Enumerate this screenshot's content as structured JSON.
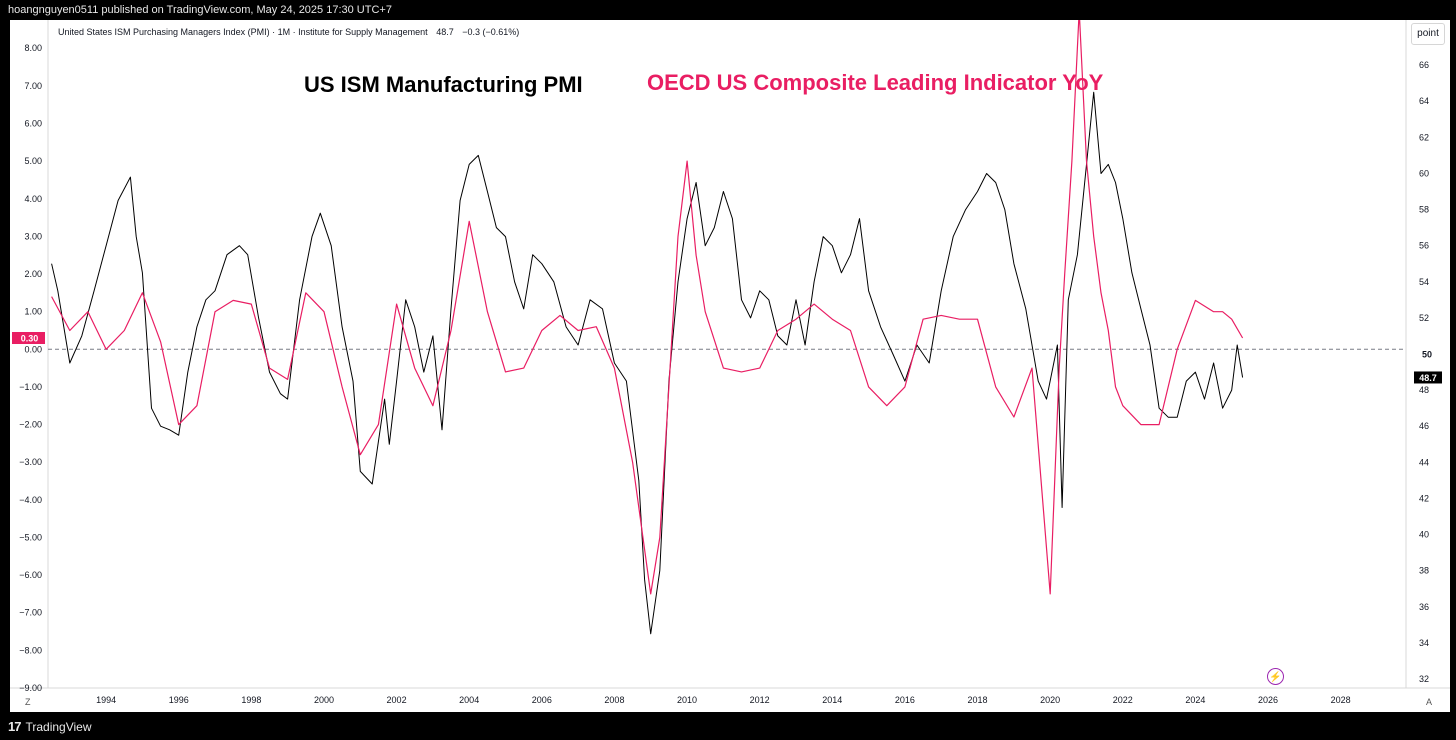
{
  "header": {
    "published_line": "hoangnguyen0511 published on TradingView.com, May 24, 2025 17:30 UTC+7"
  },
  "legend": {
    "series_name": "United States ISM Purchasing Managers Index (PMI) · 1M · Institute for Supply Management",
    "last_value": "48.7",
    "change": "−0.3 (−0.61%)"
  },
  "annotations": {
    "pmi_title": "US ISM Manufacturing PMI",
    "oecd_title": "OECD US Composite Leading Indicator YoY"
  },
  "right_axis": {
    "unit_label": "point"
  },
  "corner": {
    "left": "Z",
    "right": "A"
  },
  "footer": {
    "brand": "TradingView",
    "logo_mark": "17"
  },
  "colors": {
    "pmi": "#000000",
    "oecd": "#e91e63",
    "flash": "#9c27b0"
  },
  "chart_data": {
    "type": "line",
    "x_ticks": [
      "1994",
      "1996",
      "1998",
      "2000",
      "2002",
      "2004",
      "2006",
      "2008",
      "2010",
      "2012",
      "2014",
      "2016",
      "2018",
      "2020",
      "2022",
      "2024",
      "2026",
      "2028"
    ],
    "xlim": [
      1992.4,
      2029.8
    ],
    "left_axis": {
      "ylim": [
        -9.0,
        8.75
      ],
      "ticks": [
        "8.00",
        "7.00",
        "6.00",
        "5.00",
        "4.00",
        "3.00",
        "2.00",
        "1.00",
        "0.00",
        "−1.00",
        "−2.00",
        "−3.00",
        "−4.00",
        "−5.00",
        "−6.00",
        "−7.00",
        "−8.00",
        "−9.00"
      ],
      "tick_values": [
        8,
        7,
        6,
        5,
        4,
        3,
        2,
        1,
        0,
        -1,
        -2,
        -3,
        -4,
        -5,
        -6,
        -7,
        -8,
        -9
      ],
      "current_label": "0.30"
    },
    "right_axis": {
      "ylim": [
        31.5,
        68.5
      ],
      "ticks": [
        "66",
        "64",
        "62",
        "60",
        "58",
        "56",
        "54",
        "52",
        "50",
        "48",
        "46",
        "44",
        "42",
        "40",
        "38",
        "36",
        "34",
        "32"
      ],
      "tick_values": [
        66,
        64,
        62,
        60,
        58,
        56,
        54,
        52,
        50,
        48,
        46,
        44,
        42,
        40,
        38,
        36,
        34,
        32
      ],
      "reference_label": "50",
      "last_label": "48.7"
    },
    "series": [
      {
        "name": "US ISM Manufacturing PMI",
        "axis": "right",
        "x": [
          1992.5,
          1992.67,
          1993.0,
          1993.33,
          1993.67,
          1994.0,
          1994.33,
          1994.67,
          1994.83,
          1995.0,
          1995.25,
          1995.5,
          1995.75,
          1996.0,
          1996.25,
          1996.5,
          1996.75,
          1997.0,
          1997.33,
          1997.67,
          1997.9,
          1998.2,
          1998.5,
          1998.8,
          1999.0,
          1999.33,
          1999.67,
          1999.9,
          2000.2,
          2000.5,
          2000.8,
          2001.0,
          2001.33,
          2001.67,
          2001.8,
          2002.0,
          2002.25,
          2002.5,
          2002.75,
          2003.0,
          2003.25,
          2003.5,
          2003.75,
          2004.0,
          2004.25,
          2004.5,
          2004.75,
          2005.0,
          2005.25,
          2005.5,
          2005.75,
          2006.0,
          2006.33,
          2006.67,
          2007.0,
          2007.33,
          2007.67,
          2008.0,
          2008.33,
          2008.67,
          2008.83,
          2009.0,
          2009.25,
          2009.5,
          2009.75,
          2010.0,
          2010.25,
          2010.5,
          2010.75,
          2011.0,
          2011.25,
          2011.5,
          2011.75,
          2012.0,
          2012.25,
          2012.5,
          2012.75,
          2013.0,
          2013.25,
          2013.5,
          2013.75,
          2014.0,
          2014.25,
          2014.5,
          2014.75,
          2015.0,
          2015.33,
          2015.67,
          2016.0,
          2016.33,
          2016.67,
          2017.0,
          2017.33,
          2017.67,
          2018.0,
          2018.25,
          2018.5,
          2018.75,
          2019.0,
          2019.33,
          2019.67,
          2019.9,
          2020.2,
          2020.33,
          2020.5,
          2020.75,
          2021.0,
          2021.2,
          2021.4,
          2021.6,
          2021.8,
          2022.0,
          2022.25,
          2022.5,
          2022.75,
          2023.0,
          2023.25,
          2023.5,
          2023.75,
          2024.0,
          2024.25,
          2024.5,
          2024.75,
          2025.0,
          2025.15,
          2025.3
        ],
        "values": [
          55.0,
          53.5,
          49.5,
          51.0,
          53.5,
          56.0,
          58.5,
          59.8,
          56.5,
          54.5,
          47.0,
          46.0,
          45.8,
          45.5,
          49.0,
          51.5,
          53.0,
          53.5,
          55.5,
          56.0,
          55.5,
          52.0,
          49.0,
          47.8,
          47.5,
          53.0,
          56.5,
          57.8,
          56.0,
          51.5,
          48.5,
          43.5,
          42.8,
          47.5,
          45.0,
          48.5,
          53.0,
          51.5,
          49.0,
          51.0,
          45.8,
          52.5,
          58.5,
          60.5,
          61.0,
          59.0,
          57.0,
          56.5,
          54.0,
          52.5,
          55.5,
          55.0,
          54.0,
          51.5,
          50.5,
          53.0,
          52.5,
          49.5,
          48.5,
          43.0,
          37.5,
          34.5,
          38.0,
          48.5,
          54.0,
          57.5,
          59.5,
          56.0,
          57.0,
          59.0,
          57.5,
          53.0,
          52.0,
          53.5,
          53.0,
          51.0,
          50.5,
          53.0,
          50.5,
          54.0,
          56.5,
          56.0,
          54.5,
          55.5,
          57.5,
          53.5,
          51.5,
          50.0,
          48.5,
          50.5,
          49.5,
          53.5,
          56.5,
          58.0,
          59.0,
          60.0,
          59.5,
          58.0,
          55.0,
          52.5,
          48.5,
          47.5,
          50.5,
          41.5,
          53.0,
          55.5,
          60.5,
          64.5,
          60.0,
          60.5,
          59.5,
          57.5,
          54.5,
          52.5,
          50.5,
          47.0,
          46.5,
          46.5,
          48.5,
          49.0,
          47.5,
          49.5,
          47.0,
          48.0,
          50.5,
          48.7
        ]
      },
      {
        "name": "OECD US Composite Leading Indicator YoY",
        "axis": "left",
        "x": [
          1992.5,
          1993.0,
          1993.5,
          1994.0,
          1994.5,
          1995.0,
          1995.5,
          1996.0,
          1996.5,
          1997.0,
          1997.5,
          1998.0,
          1998.5,
          1999.0,
          1999.5,
          2000.0,
          2000.5,
          2001.0,
          2001.5,
          2002.0,
          2002.5,
          2003.0,
          2003.5,
          2004.0,
          2004.5,
          2005.0,
          2005.5,
          2006.0,
          2006.5,
          2007.0,
          2007.5,
          2008.0,
          2008.5,
          2009.0,
          2009.25,
          2009.5,
          2009.75,
          2010.0,
          2010.25,
          2010.5,
          2011.0,
          2011.5,
          2012.0,
          2012.5,
          2013.0,
          2013.5,
          2014.0,
          2014.5,
          2015.0,
          2015.5,
          2016.0,
          2016.5,
          2017.0,
          2017.5,
          2018.0,
          2018.5,
          2019.0,
          2019.5,
          2020.0,
          2020.25,
          2020.4,
          2020.6,
          2020.8,
          2021.0,
          2021.2,
          2021.4,
          2021.6,
          2021.8,
          2022.0,
          2022.5,
          2023.0,
          2023.5,
          2024.0,
          2024.5,
          2024.75,
          2025.0,
          2025.3
        ],
        "values": [
          1.4,
          0.5,
          1.0,
          0.0,
          0.5,
          1.5,
          0.2,
          -2.0,
          -1.5,
          1.0,
          1.3,
          1.2,
          -0.5,
          -0.8,
          1.5,
          1.0,
          -1.0,
          -2.8,
          -2.0,
          1.2,
          -0.5,
          -1.5,
          0.5,
          3.4,
          1.0,
          -0.6,
          -0.5,
          0.5,
          0.9,
          0.5,
          0.6,
          -0.5,
          -3.0,
          -6.5,
          -5.0,
          -1.0,
          3.0,
          5.0,
          2.5,
          1.0,
          -0.5,
          -0.6,
          -0.5,
          0.5,
          0.8,
          1.2,
          0.8,
          0.5,
          -1.0,
          -1.5,
          -1.0,
          0.8,
          0.9,
          0.8,
          0.8,
          -1.0,
          -1.8,
          -0.5,
          -6.5,
          -0.5,
          2.0,
          5.0,
          9.0,
          5.0,
          3.0,
          1.5,
          0.5,
          -1.0,
          -1.5,
          -2.0,
          -2.0,
          0.0,
          1.3,
          1.0,
          1.0,
          0.8,
          0.3
        ]
      }
    ]
  }
}
